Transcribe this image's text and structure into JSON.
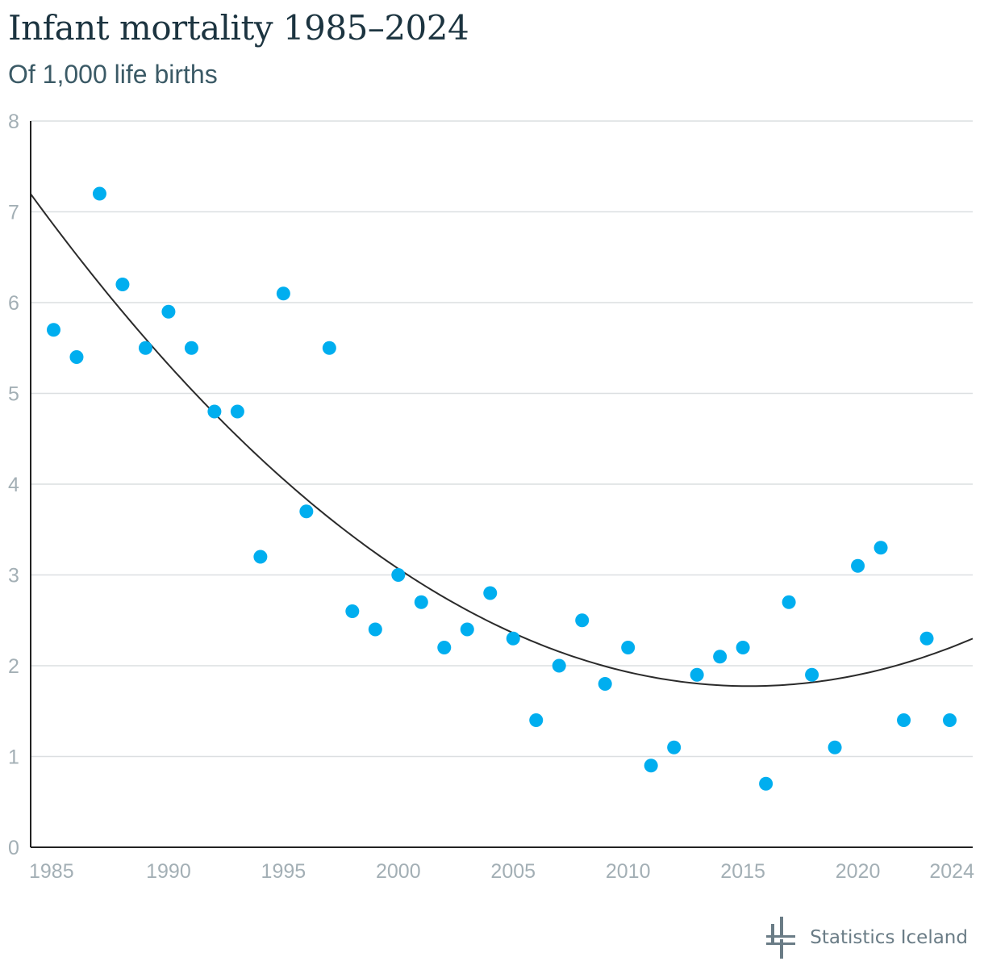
{
  "header": {
    "title": "Infant mortality 1985–2024",
    "subtitle": "Of 1,000 life births"
  },
  "brand": {
    "name": "Statistics Iceland"
  },
  "colors": {
    "points": "#00aeef",
    "trend": "#2b2b2b",
    "grid": "#dcdfe1",
    "axis": "#222222",
    "tick_text": "#a3afb5",
    "title": "#1c3440",
    "subtitle": "#3b5a66",
    "logo": "#6a7c86"
  },
  "chart_data": {
    "type": "scatter",
    "x": [
      1985,
      1986,
      1987,
      1988,
      1989,
      1990,
      1991,
      1992,
      1993,
      1994,
      1995,
      1996,
      1997,
      1998,
      1999,
      2000,
      2001,
      2002,
      2003,
      2004,
      2005,
      2006,
      2007,
      2008,
      2009,
      2010,
      2011,
      2012,
      2013,
      2014,
      2015,
      2016,
      2017,
      2018,
      2019,
      2020,
      2021,
      2022,
      2023,
      2024
    ],
    "y": [
      5.7,
      5.4,
      7.2,
      6.2,
      5.5,
      5.9,
      5.5,
      4.8,
      4.8,
      3.2,
      6.1,
      3.7,
      5.5,
      2.6,
      2.4,
      3.0,
      2.7,
      2.2,
      2.4,
      2.8,
      2.3,
      1.4,
      2.0,
      2.5,
      1.8,
      2.2,
      0.9,
      1.1,
      1.9,
      2.1,
      2.2,
      0.7,
      2.7,
      1.9,
      1.1,
      3.1,
      3.3,
      1.4,
      2.3,
      1.4
    ],
    "trendline": {
      "type": "quadratic",
      "x": [
        1984.0,
        1990.0,
        1995.0,
        2000.0,
        2005.0,
        2010.0,
        2015.3,
        2020.0,
        2025.0
      ],
      "y": [
        7.2,
        5.33,
        4.03,
        3.05,
        2.38,
        1.95,
        1.77,
        1.89,
        2.3
      ]
    },
    "xlim": [
      1984,
      2025
    ],
    "ylim": [
      0,
      8
    ],
    "x_ticks": [
      1985,
      1990,
      1995,
      2000,
      2005,
      2010,
      2015,
      2020,
      2024
    ],
    "y_ticks": [
      0,
      1,
      2,
      3,
      4,
      5,
      6,
      7,
      8
    ],
    "grid": true,
    "legend": "none",
    "title": "Infant mortality 1985–2024",
    "subtitle": "Of 1,000 life births",
    "xlabel": "",
    "ylabel": ""
  }
}
